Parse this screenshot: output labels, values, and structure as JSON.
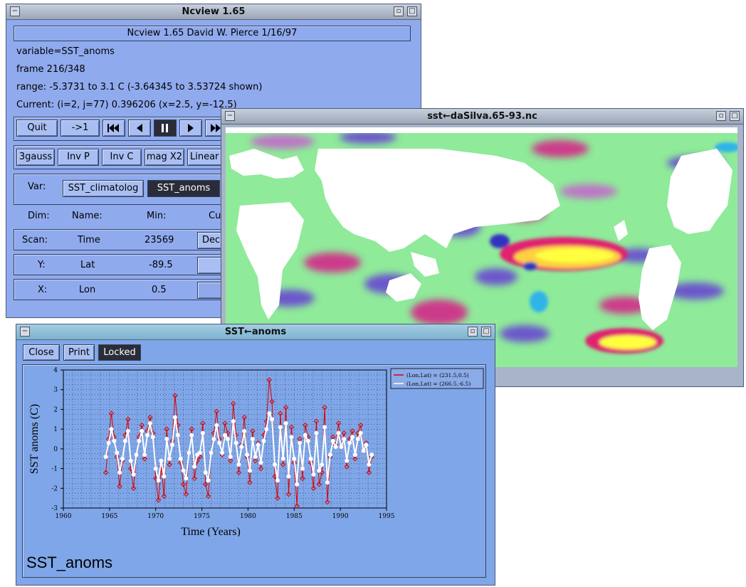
{
  "main_window": {
    "title": "Ncview 1.65",
    "banner": "Ncview 1.65 David W. Pierce 1/16/97",
    "variable_line": "variable=SST_anoms",
    "frame_line": "frame 216/348",
    "range_line": "range: -5.3731 to 3.1 C (-3.64345 to 3.53724 shown)",
    "current_line": "Current: (i=2, j=77) 0.396206 (x=2.5, y=-12.5)",
    "buttons": {
      "quit": "Quit",
      "step": "->1"
    },
    "options": [
      "3gauss",
      "Inv P",
      "Inv C",
      "mag X2",
      "Linear"
    ],
    "var_label": "Var:",
    "var_options": [
      "SST_climatolog",
      "SST_anoms"
    ],
    "dim_headers": {
      "dim": "Dim:",
      "name": "Name:",
      "min": "Min:",
      "cur": "Cu"
    },
    "dims": [
      {
        "dim": "Scan:",
        "name": "Time",
        "min": "23569",
        "btn": "Dec"
      },
      {
        "dim": "Y:",
        "name": "Lat",
        "min": "-89.5",
        "btn": ""
      },
      {
        "dim": "X:",
        "name": "Lon",
        "min": "0.5",
        "btn": ""
      }
    ]
  },
  "map_window": {
    "title": "sst←daSilva.65-93.nc"
  },
  "plot_window": {
    "title": "SST←anoms",
    "buttons": {
      "close": "Close",
      "print": "Print",
      "locked": "Locked"
    },
    "footer": "SST_anoms"
  },
  "colors": {
    "panel": "#90aaee",
    "series_red": "#dd0000",
    "series_white": "#ffffff"
  },
  "chart_data": {
    "type": "line",
    "xlabel": "Time (Years)",
    "ylabel": "SST  anoms (C)",
    "xlim": [
      1960,
      1995
    ],
    "ylim": [
      -3,
      4
    ],
    "xticks": [
      "1960",
      "1965",
      "1970",
      "1975",
      "1980",
      "1985",
      "1990",
      "1995"
    ],
    "yticks": [
      "4",
      "3",
      "2",
      "1",
      "0",
      "-1",
      "-2",
      "-3"
    ],
    "grid": true,
    "legend_position": "top-right",
    "series": [
      {
        "name": "(Lon,Lat) = (231.5,0.5)",
        "color": "#dd0000",
        "x": [
          1964.6,
          1964.9,
          1965.2,
          1965.5,
          1965.8,
          1966.1,
          1966.4,
          1966.7,
          1967.0,
          1967.3,
          1967.6,
          1967.9,
          1968.2,
          1968.5,
          1968.8,
          1969.1,
          1969.4,
          1969.7,
          1970.0,
          1970.3,
          1970.6,
          1970.9,
          1971.2,
          1971.5,
          1971.8,
          1972.1,
          1972.4,
          1972.7,
          1973.0,
          1973.3,
          1973.6,
          1973.9,
          1974.2,
          1974.5,
          1974.8,
          1975.1,
          1975.4,
          1975.7,
          1976.0,
          1976.3,
          1976.6,
          1976.9,
          1977.2,
          1977.5,
          1977.8,
          1978.1,
          1978.4,
          1978.7,
          1979.0,
          1979.3,
          1979.6,
          1979.9,
          1980.2,
          1980.5,
          1980.8,
          1981.1,
          1981.4,
          1981.7,
          1982.0,
          1982.3,
          1982.6,
          1982.9,
          1983.2,
          1983.5,
          1983.8,
          1984.1,
          1984.4,
          1984.7,
          1985.0,
          1985.3,
          1985.6,
          1985.9,
          1986.2,
          1986.5,
          1986.8,
          1987.1,
          1987.4,
          1987.7,
          1988.0,
          1988.3,
          1988.6,
          1988.9,
          1989.2,
          1989.5,
          1989.8,
          1990.1,
          1990.4,
          1990.7,
          1991.0,
          1991.3,
          1991.6,
          1991.9,
          1992.2,
          1992.5,
          1992.8,
          1993.1,
          1993.4
        ],
        "y": [
          -1.2,
          0.5,
          1.8,
          0.6,
          -0.4,
          -1.9,
          -0.6,
          0.7,
          1.5,
          -1.0,
          -2.0,
          -0.3,
          0.6,
          1.2,
          -0.5,
          0.9,
          1.6,
          0.8,
          -1.5,
          -2.6,
          -0.9,
          -2.4,
          1.0,
          -0.8,
          0.4,
          2.7,
          1.2,
          -0.7,
          -1.8,
          -2.3,
          -0.2,
          1.0,
          -1.5,
          -0.6,
          -0.4,
          1.3,
          -1.8,
          -2.4,
          -0.2,
          0.8,
          1.9,
          0.5,
          -0.3,
          1.3,
          0.8,
          -0.6,
          2.3,
          0.7,
          -1.2,
          0.2,
          1.6,
          -0.4,
          -1.7,
          0.9,
          -0.6,
          0.3,
          -1.0,
          0.7,
          1.4,
          3.5,
          2.4,
          -1.4,
          -2.5,
          1.8,
          -0.8,
          2.1,
          -2.3,
          1.1,
          -0.7,
          -2.9,
          0.5,
          -1.5,
          1.2,
          0.6,
          -0.7,
          -2.0,
          1.4,
          -1.8,
          -1.2,
          2.1,
          -2.7,
          -0.4,
          0.6,
          0.2,
          1.3,
          0.1,
          0.8,
          -0.9,
          0.5,
          0.9,
          -0.5,
          0.8,
          1.2,
          -0.1,
          0.3,
          -1.2,
          -0.4
        ]
      },
      {
        "name": "(Lon,Lat) = (266.5,-6.5)",
        "color": "#ffffff",
        "x": [
          1964.6,
          1964.9,
          1965.2,
          1965.5,
          1965.8,
          1966.1,
          1966.4,
          1966.7,
          1967.0,
          1967.3,
          1967.6,
          1967.9,
          1968.2,
          1968.5,
          1968.8,
          1969.1,
          1969.4,
          1969.7,
          1970.0,
          1970.3,
          1970.6,
          1970.9,
          1971.2,
          1971.5,
          1971.8,
          1972.1,
          1972.4,
          1972.7,
          1973.0,
          1973.3,
          1973.6,
          1973.9,
          1974.2,
          1974.5,
          1974.8,
          1975.1,
          1975.4,
          1975.7,
          1976.0,
          1976.3,
          1976.6,
          1976.9,
          1977.2,
          1977.5,
          1977.8,
          1978.1,
          1978.4,
          1978.7,
          1979.0,
          1979.3,
          1979.6,
          1979.9,
          1980.2,
          1980.5,
          1980.8,
          1981.1,
          1981.4,
          1981.7,
          1982.0,
          1982.3,
          1982.6,
          1982.9,
          1983.2,
          1983.5,
          1983.8,
          1984.1,
          1984.4,
          1984.7,
          1985.0,
          1985.3,
          1985.6,
          1985.9,
          1986.2,
          1986.5,
          1986.8,
          1987.1,
          1987.4,
          1987.7,
          1988.0,
          1988.3,
          1988.6,
          1988.9,
          1989.2,
          1989.5,
          1989.8,
          1990.1,
          1990.4,
          1990.7,
          1991.0,
          1991.3,
          1991.6,
          1991.9,
          1992.2,
          1992.5,
          1992.8,
          1993.1,
          1993.4
        ],
        "y": [
          -0.4,
          0.3,
          1.0,
          0.4,
          -0.2,
          -1.2,
          -0.5,
          0.4,
          0.9,
          -0.6,
          -1.3,
          -0.3,
          0.4,
          0.9,
          -0.3,
          0.7,
          1.3,
          0.6,
          -1.0,
          -1.6,
          -0.6,
          -1.4,
          0.5,
          -0.5,
          0.2,
          1.6,
          0.7,
          -0.5,
          -1.1,
          -1.5,
          -0.2,
          0.7,
          -0.9,
          -0.3,
          -0.2,
          0.8,
          -1.2,
          -1.6,
          -0.2,
          0.5,
          1.2,
          0.3,
          -0.2,
          0.7,
          0.5,
          -0.4,
          1.4,
          0.3,
          -0.8,
          0.1,
          0.9,
          -0.3,
          -1.1,
          0.5,
          -0.4,
          0.2,
          -0.7,
          0.4,
          1.0,
          1.8,
          1.5,
          -0.8,
          -1.6,
          1.1,
          -0.5,
          1.3,
          -1.4,
          0.6,
          -0.5,
          -1.8,
          0.3,
          -1.0,
          0.7,
          0.4,
          -0.5,
          -1.3,
          0.8,
          -1.1,
          -0.8,
          1.1,
          -1.7,
          -0.3,
          0.4,
          0.1,
          0.8,
          0.1,
          0.5,
          -0.6,
          0.3,
          0.6,
          -0.3,
          0.5,
          0.8,
          -0.1,
          0.2,
          -0.8,
          -0.3
        ]
      }
    ]
  }
}
